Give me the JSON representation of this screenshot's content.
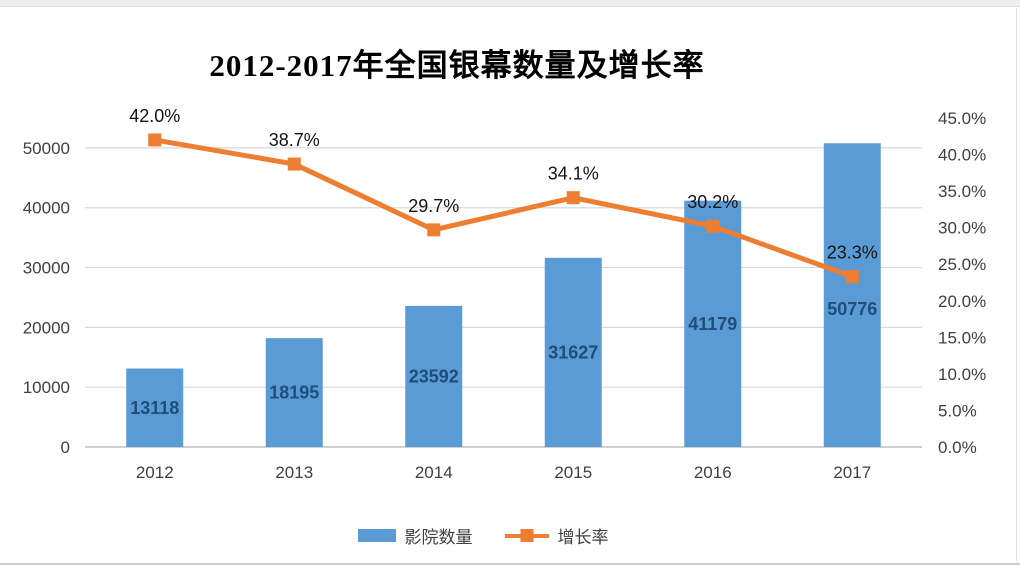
{
  "chart_data": {
    "type": "combo_bar_line",
    "title": "2012-2017年全国银幕数量及增长率",
    "categories": [
      "2012",
      "2013",
      "2014",
      "2015",
      "2016",
      "2017"
    ],
    "series": [
      {
        "name": "影院数量",
        "type": "bar",
        "axis": "left",
        "values": [
          13118,
          18195,
          23592,
          31627,
          41179,
          50776
        ],
        "data_labels": [
          "13118",
          "18195",
          "23592",
          "31627",
          "41179",
          "50776"
        ],
        "color": "#5B9BD5",
        "label_color": "#1F4E79"
      },
      {
        "name": "增长率",
        "type": "line",
        "axis": "right",
        "values": [
          42.0,
          38.7,
          29.7,
          34.1,
          30.2,
          23.3
        ],
        "data_labels": [
          "42.0%",
          "38.7%",
          "29.7%",
          "34.1%",
          "30.2%",
          "23.3%"
        ],
        "color": "#ED7D31",
        "label_color": "#141414",
        "marker": "square"
      }
    ],
    "left_axis": {
      "min": 0,
      "max": 55000,
      "ticks": [
        0,
        10000,
        20000,
        30000,
        40000,
        50000
      ],
      "tick_labels": [
        "0",
        "10000",
        "20000",
        "30000",
        "40000",
        "50000"
      ]
    },
    "right_axis": {
      "min": 0,
      "max": 45,
      "ticks": [
        0,
        5,
        10,
        15,
        20,
        25,
        30,
        35,
        40,
        45
      ],
      "tick_labels": [
        "0.0%",
        "5.0%",
        "10.0%",
        "15.0%",
        "20.0%",
        "25.0%",
        "30.0%",
        "35.0%",
        "40.0%",
        "45.0%"
      ]
    },
    "grid": "horizontal",
    "gridline_color": "#D9D9D9",
    "baseline_color": "#BFBFBF",
    "axis_text_color": "#404040",
    "legend_position": "bottom"
  }
}
